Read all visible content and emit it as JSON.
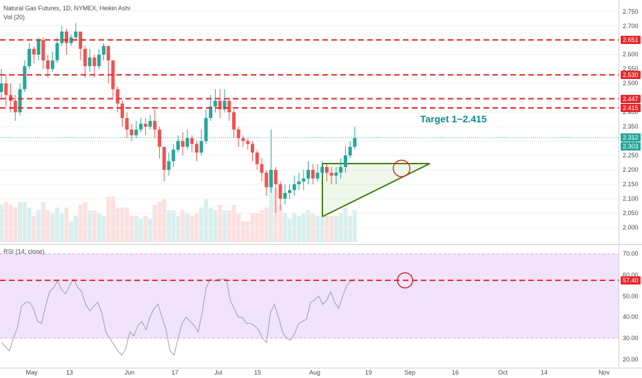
{
  "header": {
    "title": "Natural Gas Futures, 1D, NYMEX, Heikin Ashi",
    "volume_label": "Vol (20)",
    "rsi_label": "RSI (14, close)"
  },
  "colors": {
    "up": "#26a69a",
    "down": "#ef5350",
    "level_line": "#e8262a",
    "pattern": "#3f7f14",
    "rsi_line": "#9e9e9e",
    "rsi_band": "#f1e3fb",
    "current_price": "#26a69a",
    "annotation": "#0f8a85"
  },
  "chart_data": [
    {
      "type": "candlestick",
      "panel": "price",
      "style": "Heikin Ashi",
      "ylim": [
        1.95,
        2.78
      ],
      "y_ticks": [
        "2.750",
        "2.700",
        "2.650",
        "2.600",
        "2.550",
        "2.500",
        "2.450",
        "2.400",
        "2.350",
        "2.300",
        "2.250",
        "2.200",
        "2.150",
        "2.100",
        "2.050",
        "2.000"
      ],
      "x_ticks": [
        "May",
        "13",
        "Jun",
        "17",
        "Jul",
        "15",
        "Aug",
        "19",
        "Sep",
        "16",
        "Oct",
        "14",
        "Nov"
      ],
      "candles": [
        [
          2.47,
          2.5,
          2.55,
          2.45
        ],
        [
          2.5,
          2.46,
          2.53,
          2.42
        ],
        [
          2.46,
          2.44,
          2.5,
          2.4
        ],
        [
          2.44,
          2.4,
          2.46,
          2.37
        ],
        [
          2.4,
          2.48,
          2.5,
          2.39
        ],
        [
          2.48,
          2.56,
          2.58,
          2.47
        ],
        [
          2.56,
          2.62,
          2.64,
          2.55
        ],
        [
          2.62,
          2.6,
          2.63,
          2.57
        ],
        [
          2.6,
          2.65,
          2.66,
          2.58
        ],
        [
          2.65,
          2.58,
          2.66,
          2.55
        ],
        [
          2.58,
          2.55,
          2.6,
          2.52
        ],
        [
          2.55,
          2.58,
          2.61,
          2.54
        ],
        [
          2.58,
          2.64,
          2.66,
          2.57
        ],
        [
          2.64,
          2.68,
          2.7,
          2.63
        ],
        [
          2.68,
          2.64,
          2.69,
          2.6
        ],
        [
          2.64,
          2.66,
          2.67,
          2.63
        ],
        [
          2.66,
          2.68,
          2.71,
          2.65
        ],
        [
          2.68,
          2.62,
          2.68,
          2.58
        ],
        [
          2.62,
          2.56,
          2.63,
          2.52
        ],
        [
          2.56,
          2.59,
          2.62,
          2.54
        ],
        [
          2.59,
          2.56,
          2.6,
          2.52
        ],
        [
          2.56,
          2.6,
          2.62,
          2.55
        ],
        [
          2.6,
          2.63,
          2.64,
          2.58
        ],
        [
          2.63,
          2.58,
          2.63,
          2.5
        ],
        [
          2.58,
          2.48,
          2.58,
          2.45
        ],
        [
          2.48,
          2.43,
          2.49,
          2.4
        ],
        [
          2.43,
          2.38,
          2.44,
          2.35
        ],
        [
          2.38,
          2.34,
          2.4,
          2.31
        ],
        [
          2.34,
          2.32,
          2.36,
          2.3
        ],
        [
          2.32,
          2.34,
          2.37,
          2.31
        ],
        [
          2.34,
          2.36,
          2.38,
          2.33
        ],
        [
          2.36,
          2.35,
          2.38,
          2.32
        ],
        [
          2.35,
          2.37,
          2.39,
          2.34
        ],
        [
          2.37,
          2.34,
          2.41,
          2.31
        ],
        [
          2.34,
          2.28,
          2.35,
          2.24
        ],
        [
          2.28,
          2.2,
          2.28,
          2.16
        ],
        [
          2.2,
          2.23,
          2.26,
          2.18
        ],
        [
          2.23,
          2.27,
          2.29,
          2.21
        ],
        [
          2.27,
          2.3,
          2.32,
          2.26
        ],
        [
          2.3,
          2.28,
          2.33,
          2.25
        ],
        [
          2.28,
          2.31,
          2.34,
          2.27
        ],
        [
          2.31,
          2.29,
          2.32,
          2.26
        ],
        [
          2.29,
          2.26,
          2.3,
          2.23
        ],
        [
          2.26,
          2.3,
          2.34,
          2.25
        ],
        [
          2.3,
          2.38,
          2.41,
          2.29
        ],
        [
          2.38,
          2.42,
          2.46,
          2.37
        ],
        [
          2.42,
          2.44,
          2.48,
          2.4
        ],
        [
          2.44,
          2.41,
          2.48,
          2.38
        ],
        [
          2.41,
          2.44,
          2.48,
          2.4
        ],
        [
          2.44,
          2.4,
          2.45,
          2.37
        ],
        [
          2.4,
          2.34,
          2.41,
          2.31
        ],
        [
          2.34,
          2.31,
          2.35,
          2.28
        ],
        [
          2.31,
          2.3,
          2.32,
          2.28
        ],
        [
          2.3,
          2.29,
          2.31,
          2.27
        ],
        [
          2.29,
          2.26,
          2.3,
          2.23
        ],
        [
          2.26,
          2.22,
          2.27,
          2.2
        ],
        [
          2.22,
          2.19,
          2.24,
          2.16
        ],
        [
          2.19,
          2.14,
          2.2,
          2.11
        ],
        [
          2.14,
          2.2,
          2.34,
          2.12
        ],
        [
          2.2,
          2.15,
          2.21,
          2.05
        ],
        [
          2.15,
          2.1,
          2.16,
          2.06
        ],
        [
          2.1,
          2.12,
          2.15,
          2.08
        ],
        [
          2.12,
          2.13,
          2.15,
          2.1
        ],
        [
          2.13,
          2.15,
          2.18,
          2.11
        ],
        [
          2.15,
          2.16,
          2.19,
          2.13
        ],
        [
          2.16,
          2.17,
          2.2,
          2.13
        ],
        [
          2.17,
          2.2,
          2.23,
          2.15
        ],
        [
          2.2,
          2.17,
          2.22,
          2.15
        ],
        [
          2.17,
          2.19,
          2.22,
          2.16
        ],
        [
          2.19,
          2.21,
          2.23,
          2.17
        ],
        [
          2.21,
          2.19,
          2.22,
          2.16
        ],
        [
          2.19,
          2.18,
          2.21,
          2.15
        ],
        [
          2.18,
          2.19,
          2.21,
          2.15
        ],
        [
          2.19,
          2.21,
          2.24,
          2.17
        ],
        [
          2.21,
          2.25,
          2.28,
          2.19
        ],
        [
          2.25,
          2.28,
          2.3,
          2.24
        ],
        [
          2.28,
          2.31,
          2.35,
          2.27
        ]
      ],
      "levels": [
        "2.651",
        "2.530",
        "2.447",
        "2.415"
      ],
      "last_price_tag": "2.312",
      "volume_tag": "2.303",
      "annotation": "Target 1~2.415"
    },
    {
      "type": "line",
      "panel": "rsi",
      "name": "RSI (14, close)",
      "ylim": [
        17,
        73
      ],
      "y_ticks": [
        "70.00",
        "60.00",
        "50.00",
        "40.00",
        "30.00",
        "20.00"
      ],
      "band": [
        30,
        70
      ],
      "level_tag": "57.40",
      "values": [
        28,
        26,
        24,
        30,
        35,
        45,
        47,
        47,
        44,
        38,
        37,
        45,
        52,
        54,
        57,
        53,
        51,
        55,
        58,
        54,
        52,
        46,
        43,
        45,
        47,
        42,
        33,
        30,
        27,
        24,
        22,
        25,
        33,
        31,
        36,
        38,
        34,
        40,
        44,
        46,
        40,
        34,
        24,
        22,
        30,
        37,
        40,
        38,
        36,
        33,
        42,
        54,
        58,
        57,
        58,
        58,
        58,
        48,
        44,
        40,
        40,
        37,
        37,
        36,
        34,
        30,
        28,
        42,
        46,
        40,
        33,
        30,
        29,
        32,
        37,
        38,
        39,
        47,
        48,
        50,
        46,
        48,
        52,
        47,
        44,
        50,
        55,
        57,
        58
      ]
    }
  ]
}
